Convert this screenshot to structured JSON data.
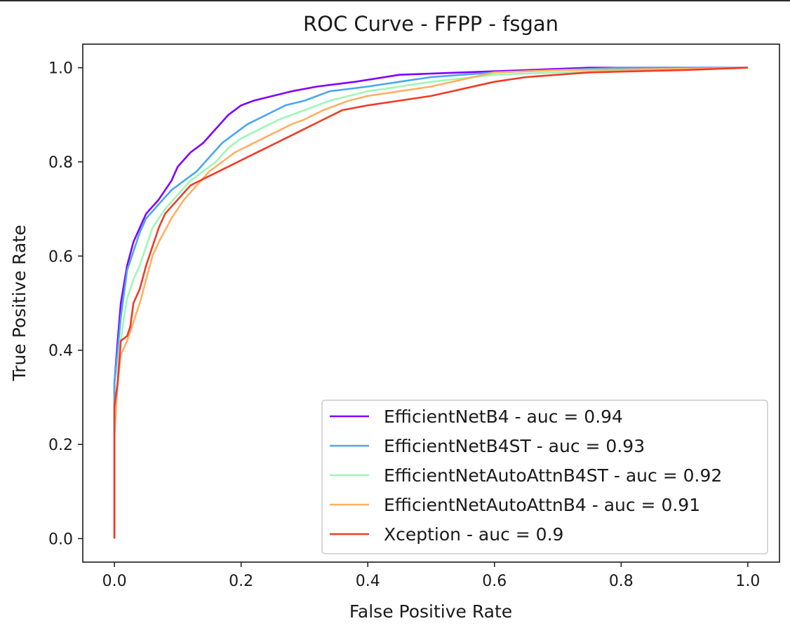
{
  "chart_data": {
    "type": "line",
    "title": "ROC Curve - FFPP - fsgan",
    "xlabel": "False Positive Rate",
    "ylabel": "True Positive Rate",
    "xlim": [
      -0.05,
      1.05
    ],
    "ylim": [
      -0.05,
      1.05
    ],
    "xticks": [
      "0.0",
      "0.2",
      "0.4",
      "0.6",
      "0.8",
      "1.0"
    ],
    "yticks": [
      "0.0",
      "0.2",
      "0.4",
      "0.6",
      "0.8",
      "1.0"
    ],
    "grid": false,
    "legend_position": "lower-right",
    "series": [
      {
        "name": "EfficientNetB4 - auc = 0.94",
        "color": "#8000ff",
        "points": [
          [
            0,
            0
          ],
          [
            0,
            0.33
          ],
          [
            0.005,
            0.42
          ],
          [
            0.01,
            0.5
          ],
          [
            0.015,
            0.54
          ],
          [
            0.02,
            0.58
          ],
          [
            0.03,
            0.63
          ],
          [
            0.04,
            0.66
          ],
          [
            0.05,
            0.69
          ],
          [
            0.07,
            0.72
          ],
          [
            0.09,
            0.76
          ],
          [
            0.1,
            0.79
          ],
          [
            0.12,
            0.82
          ],
          [
            0.14,
            0.84
          ],
          [
            0.16,
            0.87
          ],
          [
            0.18,
            0.9
          ],
          [
            0.2,
            0.92
          ],
          [
            0.22,
            0.93
          ],
          [
            0.25,
            0.94
          ],
          [
            0.28,
            0.95
          ],
          [
            0.32,
            0.96
          ],
          [
            0.38,
            0.97
          ],
          [
            0.45,
            0.985
          ],
          [
            0.55,
            0.99
          ],
          [
            0.65,
            0.995
          ],
          [
            0.75,
            1.0
          ],
          [
            1.0,
            1.0
          ]
        ]
      },
      {
        "name": "EfficientNetB4ST - auc = 0.93",
        "color": "#4aa7ee",
        "points": [
          [
            0,
            0
          ],
          [
            0,
            0.33
          ],
          [
            0.005,
            0.4
          ],
          [
            0.01,
            0.47
          ],
          [
            0.015,
            0.52
          ],
          [
            0.02,
            0.57
          ],
          [
            0.03,
            0.61
          ],
          [
            0.04,
            0.65
          ],
          [
            0.05,
            0.68
          ],
          [
            0.07,
            0.71
          ],
          [
            0.09,
            0.74
          ],
          [
            0.11,
            0.76
          ],
          [
            0.13,
            0.78
          ],
          [
            0.15,
            0.81
          ],
          [
            0.17,
            0.84
          ],
          [
            0.19,
            0.86
          ],
          [
            0.21,
            0.88
          ],
          [
            0.24,
            0.9
          ],
          [
            0.27,
            0.92
          ],
          [
            0.3,
            0.93
          ],
          [
            0.34,
            0.95
          ],
          [
            0.4,
            0.96
          ],
          [
            0.45,
            0.97
          ],
          [
            0.5,
            0.98
          ],
          [
            0.6,
            0.99
          ],
          [
            0.7,
            0.995
          ],
          [
            0.8,
            1.0
          ],
          [
            1.0,
            1.0
          ]
        ]
      },
      {
        "name": "EfficientNetAutoAttnB4ST - auc = 0.92",
        "color": "#9ef7b6",
        "points": [
          [
            0,
            0
          ],
          [
            0,
            0.22
          ],
          [
            0.005,
            0.35
          ],
          [
            0.01,
            0.42
          ],
          [
            0.015,
            0.47
          ],
          [
            0.02,
            0.51
          ],
          [
            0.03,
            0.55
          ],
          [
            0.04,
            0.58
          ],
          [
            0.05,
            0.62
          ],
          [
            0.06,
            0.66
          ],
          [
            0.08,
            0.7
          ],
          [
            0.1,
            0.73
          ],
          [
            0.12,
            0.76
          ],
          [
            0.14,
            0.78
          ],
          [
            0.16,
            0.8
          ],
          [
            0.18,
            0.83
          ],
          [
            0.2,
            0.85
          ],
          [
            0.23,
            0.87
          ],
          [
            0.26,
            0.89
          ],
          [
            0.3,
            0.91
          ],
          [
            0.34,
            0.93
          ],
          [
            0.4,
            0.95
          ],
          [
            0.45,
            0.96
          ],
          [
            0.5,
            0.97
          ],
          [
            0.6,
            0.985
          ],
          [
            0.7,
            0.99
          ],
          [
            0.85,
            0.995
          ],
          [
            1.0,
            1.0
          ]
        ]
      },
      {
        "name": "EfficientNetAutoAttnB4 - auc = 0.91",
        "color": "#ffb061",
        "points": [
          [
            0,
            0
          ],
          [
            0,
            0.22
          ],
          [
            0.005,
            0.33
          ],
          [
            0.01,
            0.39
          ],
          [
            0.02,
            0.42
          ],
          [
            0.03,
            0.46
          ],
          [
            0.04,
            0.5
          ],
          [
            0.05,
            0.55
          ],
          [
            0.06,
            0.6
          ],
          [
            0.07,
            0.63
          ],
          [
            0.09,
            0.68
          ],
          [
            0.11,
            0.72
          ],
          [
            0.13,
            0.75
          ],
          [
            0.15,
            0.78
          ],
          [
            0.17,
            0.8
          ],
          [
            0.19,
            0.82
          ],
          [
            0.22,
            0.84
          ],
          [
            0.25,
            0.86
          ],
          [
            0.28,
            0.88
          ],
          [
            0.3,
            0.89
          ],
          [
            0.33,
            0.91
          ],
          [
            0.37,
            0.93
          ],
          [
            0.4,
            0.94
          ],
          [
            0.45,
            0.95
          ],
          [
            0.5,
            0.96
          ],
          [
            0.55,
            0.975
          ],
          [
            0.6,
            0.99
          ],
          [
            0.7,
            0.995
          ],
          [
            0.85,
            0.997
          ],
          [
            1.0,
            1.0
          ]
        ]
      },
      {
        "name": "Xception - auc = 0.9",
        "color": "#f03a28",
        "points": [
          [
            0,
            0
          ],
          [
            0,
            0.28
          ],
          [
            0.005,
            0.33
          ],
          [
            0.01,
            0.42
          ],
          [
            0.02,
            0.43
          ],
          [
            0.025,
            0.45
          ],
          [
            0.03,
            0.5
          ],
          [
            0.04,
            0.53
          ],
          [
            0.05,
            0.58
          ],
          [
            0.06,
            0.62
          ],
          [
            0.07,
            0.66
          ],
          [
            0.08,
            0.69
          ],
          [
            0.1,
            0.72
          ],
          [
            0.12,
            0.75
          ],
          [
            0.15,
            0.77
          ],
          [
            0.18,
            0.79
          ],
          [
            0.21,
            0.81
          ],
          [
            0.24,
            0.83
          ],
          [
            0.27,
            0.85
          ],
          [
            0.3,
            0.87
          ],
          [
            0.33,
            0.89
          ],
          [
            0.36,
            0.91
          ],
          [
            0.4,
            0.92
          ],
          [
            0.45,
            0.93
          ],
          [
            0.5,
            0.94
          ],
          [
            0.55,
            0.955
          ],
          [
            0.6,
            0.97
          ],
          [
            0.65,
            0.98
          ],
          [
            0.75,
            0.99
          ],
          [
            0.9,
            0.995
          ],
          [
            1.0,
            1.0
          ]
        ]
      }
    ]
  }
}
